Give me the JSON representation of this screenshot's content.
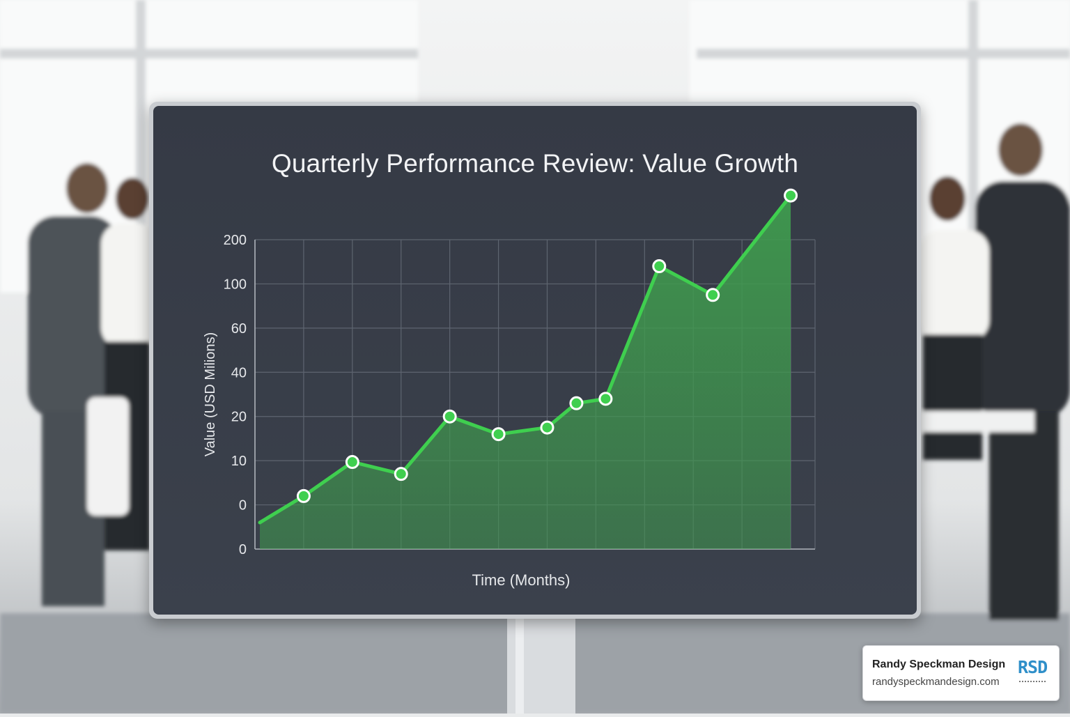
{
  "chart_data": {
    "type": "area",
    "title": "Quarterly Performance Review: Value Growth",
    "xlabel": "Time (Months)",
    "ylabel": "Value (USD Milions)",
    "y_tick_labels": [
      "0",
      "0",
      "10",
      "20",
      "40",
      "60",
      "100",
      "200"
    ],
    "y_scale": "categorical-ticks",
    "grid": true,
    "legend": "none",
    "series": [
      {
        "values": [
          {
            "x": 0.1,
            "y": -0.4
          },
          {
            "x": 1.0,
            "y": 0.2
          },
          {
            "x": 2.0,
            "y": 0.97
          },
          {
            "x": 3.0,
            "y": 0.7
          },
          {
            "x": 4.0,
            "y": 2.0
          },
          {
            "x": 5.0,
            "y": 1.6
          },
          {
            "x": 6.0,
            "y": 1.75
          },
          {
            "x": 6.6,
            "y": 2.3
          },
          {
            "x": 7.2,
            "y": 2.4
          },
          {
            "x": 8.3,
            "y": 5.4
          },
          {
            "x": 9.4,
            "y": 4.75
          },
          {
            "x": 11.0,
            "y": 7.0
          }
        ],
        "color": "#3fcf4f"
      }
    ],
    "colors": {
      "line": "#3fcf4f",
      "fill": "#3f9a4e",
      "marker_fill": "#3fcf4f",
      "marker_stroke": "#ffffff"
    }
  },
  "watermark": {
    "name": "Randy Speckman Design",
    "url": "randyspeckmandesign.com",
    "logo": "RSD"
  }
}
